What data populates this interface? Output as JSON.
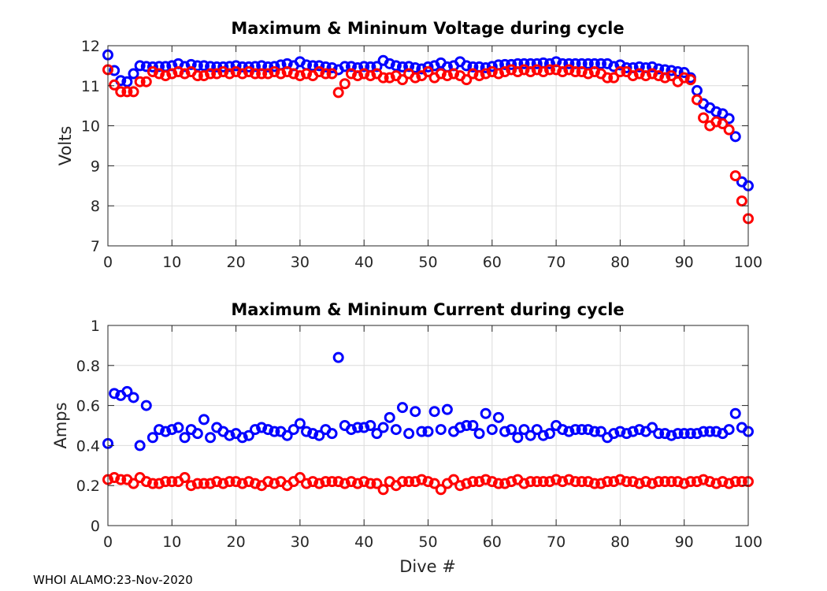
{
  "footer": "WHOI ALAMO:23-Nov-2020",
  "chart_data": [
    {
      "type": "scatter",
      "title": "Maximum & Mininum Voltage during cycle",
      "xlabel": "",
      "ylabel": "Volts",
      "xlim": [
        0,
        100
      ],
      "ylim": [
        7,
        12
      ],
      "xticks": [
        0,
        10,
        20,
        30,
        40,
        50,
        60,
        70,
        80,
        90,
        100
      ],
      "yticks": [
        7,
        8,
        9,
        10,
        11,
        12
      ],
      "grid": true,
      "x": [
        0,
        1,
        2,
        3,
        4,
        5,
        6,
        7,
        8,
        9,
        10,
        11,
        12,
        13,
        14,
        15,
        16,
        17,
        18,
        19,
        20,
        21,
        22,
        23,
        24,
        25,
        26,
        27,
        28,
        29,
        30,
        31,
        32,
        33,
        34,
        35,
        36,
        37,
        38,
        39,
        40,
        41,
        42,
        43,
        44,
        45,
        46,
        47,
        48,
        49,
        50,
        51,
        52,
        53,
        54,
        55,
        56,
        57,
        58,
        59,
        60,
        61,
        62,
        63,
        64,
        65,
        66,
        67,
        68,
        69,
        70,
        71,
        72,
        73,
        74,
        75,
        76,
        77,
        78,
        79,
        80,
        81,
        82,
        83,
        84,
        85,
        86,
        87,
        88,
        89,
        90,
        91,
        92,
        93,
        94,
        95,
        96,
        97,
        98,
        99,
        100
      ],
      "series": [
        {
          "name": "Maximum",
          "color": "#0000ff",
          "values": [
            11.77,
            11.38,
            11.13,
            11.1,
            11.3,
            11.5,
            11.48,
            11.47,
            11.48,
            11.48,
            11.5,
            11.55,
            11.48,
            11.53,
            11.5,
            11.5,
            11.48,
            11.47,
            11.47,
            11.48,
            11.5,
            11.47,
            11.47,
            11.48,
            11.5,
            11.47,
            11.48,
            11.52,
            11.55,
            11.5,
            11.6,
            11.52,
            11.5,
            11.5,
            11.47,
            11.45,
            11.4,
            11.48,
            11.48,
            11.45,
            11.48,
            11.47,
            11.48,
            11.63,
            11.55,
            11.5,
            11.47,
            11.48,
            11.45,
            11.42,
            11.47,
            11.5,
            11.57,
            11.47,
            11.5,
            11.6,
            11.5,
            11.47,
            11.47,
            11.45,
            11.48,
            11.52,
            11.53,
            11.53,
            11.55,
            11.55,
            11.55,
            11.55,
            11.57,
            11.55,
            11.6,
            11.55,
            11.55,
            11.55,
            11.55,
            11.55,
            11.55,
            11.55,
            11.55,
            11.48,
            11.52,
            11.45,
            11.45,
            11.47,
            11.45,
            11.47,
            11.42,
            11.4,
            11.38,
            11.35,
            11.33,
            11.2,
            10.88,
            10.55,
            10.45,
            10.35,
            10.3,
            10.18,
            9.73,
            8.6,
            8.5
          ]
        },
        {
          "name": "Minimum",
          "color": "#ff0000",
          "values": [
            11.4,
            11.02,
            10.85,
            10.85,
            10.85,
            11.1,
            11.1,
            11.35,
            11.3,
            11.25,
            11.3,
            11.35,
            11.3,
            11.35,
            11.25,
            11.25,
            11.3,
            11.3,
            11.35,
            11.3,
            11.35,
            11.3,
            11.35,
            11.3,
            11.3,
            11.3,
            11.35,
            11.3,
            11.35,
            11.3,
            11.25,
            11.3,
            11.25,
            11.35,
            11.3,
            11.3,
            10.83,
            11.05,
            11.3,
            11.25,
            11.3,
            11.25,
            11.3,
            11.2,
            11.2,
            11.25,
            11.15,
            11.3,
            11.2,
            11.25,
            11.35,
            11.2,
            11.3,
            11.25,
            11.3,
            11.25,
            11.15,
            11.3,
            11.25,
            11.3,
            11.35,
            11.3,
            11.35,
            11.4,
            11.35,
            11.4,
            11.35,
            11.4,
            11.35,
            11.4,
            11.4,
            11.35,
            11.4,
            11.35,
            11.35,
            11.3,
            11.35,
            11.3,
            11.2,
            11.2,
            11.35,
            11.35,
            11.25,
            11.3,
            11.25,
            11.3,
            11.25,
            11.2,
            11.25,
            11.1,
            11.2,
            11.15,
            10.65,
            10.2,
            10.0,
            10.1,
            10.05,
            9.9,
            8.75,
            8.12,
            7.68
          ]
        }
      ]
    },
    {
      "type": "scatter",
      "title": "Maximum & Mininum Current during cycle",
      "xlabel": "Dive #",
      "ylabel": "Amps",
      "xlim": [
        0,
        100
      ],
      "ylim": [
        0,
        1
      ],
      "xticks": [
        0,
        10,
        20,
        30,
        40,
        50,
        60,
        70,
        80,
        90,
        100
      ],
      "yticks": [
        0,
        0.2,
        0.4,
        0.6,
        0.8,
        1
      ],
      "ytick_labels": [
        "0",
        "0.2",
        "0.4",
        "0.6",
        "0.8",
        "1"
      ],
      "grid": true,
      "x": [
        0,
        1,
        2,
        3,
        4,
        5,
        6,
        7,
        8,
        9,
        10,
        11,
        12,
        13,
        14,
        15,
        16,
        17,
        18,
        19,
        20,
        21,
        22,
        23,
        24,
        25,
        26,
        27,
        28,
        29,
        30,
        31,
        32,
        33,
        34,
        35,
        36,
        37,
        38,
        39,
        40,
        41,
        42,
        43,
        44,
        45,
        46,
        47,
        48,
        49,
        50,
        51,
        52,
        53,
        54,
        55,
        56,
        57,
        58,
        59,
        60,
        61,
        62,
        63,
        64,
        65,
        66,
        67,
        68,
        69,
        70,
        71,
        72,
        73,
        74,
        75,
        76,
        77,
        78,
        79,
        80,
        81,
        82,
        83,
        84,
        85,
        86,
        87,
        88,
        89,
        90,
        91,
        92,
        93,
        94,
        95,
        96,
        97,
        98,
        99,
        100
      ],
      "series": [
        {
          "name": "Maximum",
          "color": "#0000ff",
          "values": [
            0.41,
            0.66,
            0.65,
            0.67,
            0.64,
            0.4,
            0.6,
            0.44,
            0.48,
            0.47,
            0.48,
            0.49,
            0.44,
            0.48,
            0.46,
            0.53,
            0.44,
            0.49,
            0.47,
            0.45,
            0.46,
            0.44,
            0.45,
            0.48,
            0.49,
            0.48,
            0.47,
            0.47,
            0.45,
            0.48,
            0.51,
            0.47,
            0.46,
            0.45,
            0.48,
            0.46,
            0.84,
            0.5,
            0.48,
            0.49,
            0.49,
            0.5,
            0.46,
            0.49,
            0.54,
            0.48,
            0.59,
            0.46,
            0.57,
            0.47,
            0.47,
            0.57,
            0.48,
            0.58,
            0.47,
            0.49,
            0.5,
            0.5,
            0.46,
            0.56,
            0.48,
            0.54,
            0.47,
            0.48,
            0.44,
            0.48,
            0.45,
            0.48,
            0.45,
            0.46,
            0.5,
            0.48,
            0.47,
            0.48,
            0.48,
            0.48,
            0.47,
            0.47,
            0.44,
            0.46,
            0.47,
            0.46,
            0.47,
            0.48,
            0.47,
            0.49,
            0.46,
            0.46,
            0.45,
            0.46,
            0.46,
            0.46,
            0.46,
            0.47,
            0.47,
            0.47,
            0.46,
            0.48,
            0.56,
            0.49,
            0.47
          ]
        },
        {
          "name": "Minimum",
          "color": "#ff0000",
          "values": [
            0.23,
            0.24,
            0.23,
            0.23,
            0.21,
            0.24,
            0.22,
            0.21,
            0.21,
            0.22,
            0.22,
            0.22,
            0.24,
            0.2,
            0.21,
            0.21,
            0.21,
            0.22,
            0.21,
            0.22,
            0.22,
            0.21,
            0.22,
            0.21,
            0.2,
            0.22,
            0.21,
            0.22,
            0.2,
            0.22,
            0.24,
            0.21,
            0.22,
            0.21,
            0.22,
            0.22,
            0.22,
            0.21,
            0.22,
            0.21,
            0.22,
            0.21,
            0.21,
            0.18,
            0.22,
            0.2,
            0.22,
            0.22,
            0.22,
            0.23,
            0.22,
            0.21,
            0.18,
            0.21,
            0.23,
            0.2,
            0.21,
            0.22,
            0.22,
            0.23,
            0.22,
            0.21,
            0.21,
            0.22,
            0.23,
            0.21,
            0.22,
            0.22,
            0.22,
            0.22,
            0.23,
            0.22,
            0.23,
            0.22,
            0.22,
            0.22,
            0.21,
            0.21,
            0.22,
            0.22,
            0.23,
            0.22,
            0.22,
            0.21,
            0.22,
            0.21,
            0.22,
            0.22,
            0.22,
            0.22,
            0.21,
            0.22,
            0.22,
            0.23,
            0.22,
            0.21,
            0.22,
            0.21,
            0.22,
            0.22,
            0.22
          ]
        }
      ]
    }
  ]
}
